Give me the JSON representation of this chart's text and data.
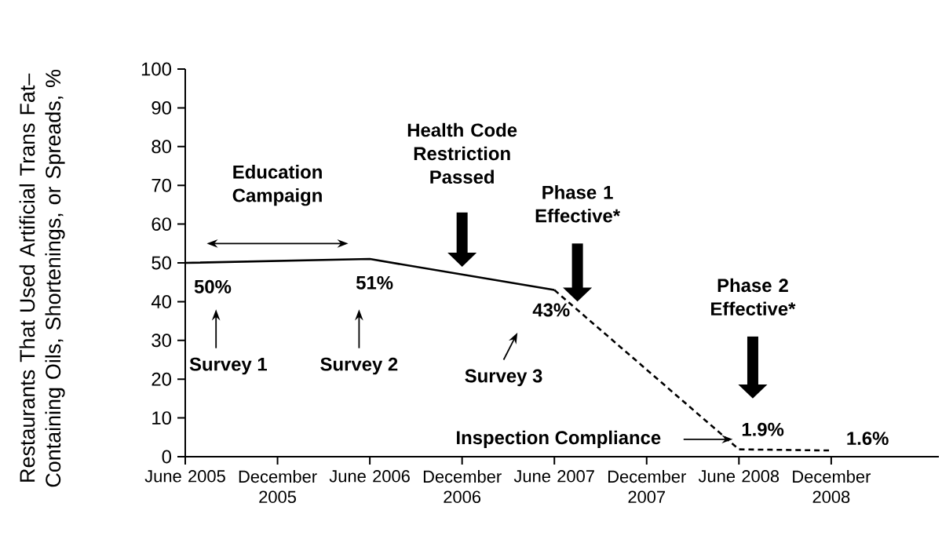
{
  "chart_data": {
    "type": "line",
    "ylabel": "Restaurants That Used Artificial Trans Fat–Containing Oils, Shortenings, or Spreads, %",
    "xlim": [
      "2005-06",
      "2009-07"
    ],
    "xticks": [
      {
        "value": "2005-06",
        "label": "June 2005"
      },
      {
        "value": "2005-12",
        "label": "December 2005"
      },
      {
        "value": "2006-06",
        "label": "June 2006"
      },
      {
        "value": "2006-12",
        "label": "December 2006"
      },
      {
        "value": "2007-06",
        "label": "June 2007"
      },
      {
        "value": "2007-12",
        "label": "December 2007"
      },
      {
        "value": "2008-06",
        "label": "June 2008"
      },
      {
        "value": "2008-12",
        "label": "December 2008"
      }
    ],
    "ylim": [
      0,
      100
    ],
    "yticks": [
      0,
      10,
      20,
      30,
      40,
      50,
      60,
      70,
      80,
      90,
      100
    ],
    "marker": "none",
    "series": [
      {
        "color": "#000000",
        "line_style": "solid",
        "x": [
          "2005-06",
          "2006-06",
          "2007-06"
        ],
        "values": [
          50,
          51,
          43
        ],
        "value_labels": [
          "50%",
          "51%",
          "43%"
        ]
      },
      {
        "color": "#000000",
        "line_style": "dashed",
        "x": [
          "2007-06",
          "2008-06",
          "2008-12"
        ],
        "values": [
          43,
          1.9,
          1.6
        ],
        "value_labels": [
          null,
          "1.9%",
          "1.6%"
        ]
      }
    ],
    "annotations": [
      "Education Campaign",
      "Health Code Restriction Passed",
      "Phase 1 Effective*",
      "Phase 2 Effective*",
      "Survey 1",
      "Survey 2",
      "Survey 3",
      "Inspection Compliance"
    ]
  }
}
